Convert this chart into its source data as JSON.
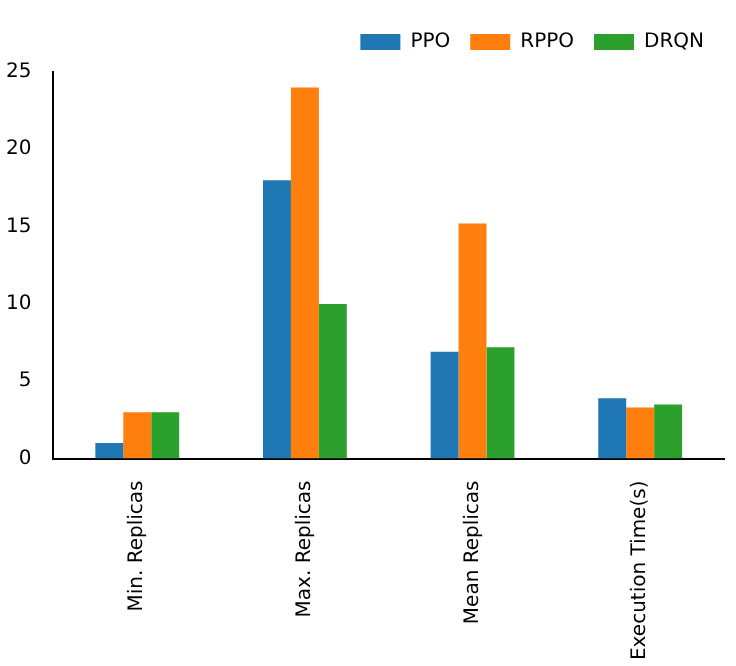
{
  "chart_data": {
    "type": "bar",
    "categories": [
      "Min. Replicas",
      "Max. Replicas",
      "Mean Replicas",
      "Execution Time(s)"
    ],
    "series": [
      {
        "name": "PPO",
        "color": "#1f77b4",
        "values": [
          1,
          18,
          6.9,
          3.9
        ]
      },
      {
        "name": "RPPO",
        "color": "#ff7f0e",
        "values": [
          3,
          24,
          15.2,
          3.3
        ]
      },
      {
        "name": "DRQN",
        "color": "#2ca02c",
        "values": [
          3,
          10,
          7.2,
          3.5
        ]
      }
    ],
    "ylim": [
      0,
      25
    ],
    "yticks": [
      0,
      5,
      10,
      15,
      20,
      25
    ],
    "grid": false,
    "legend": "top right"
  }
}
